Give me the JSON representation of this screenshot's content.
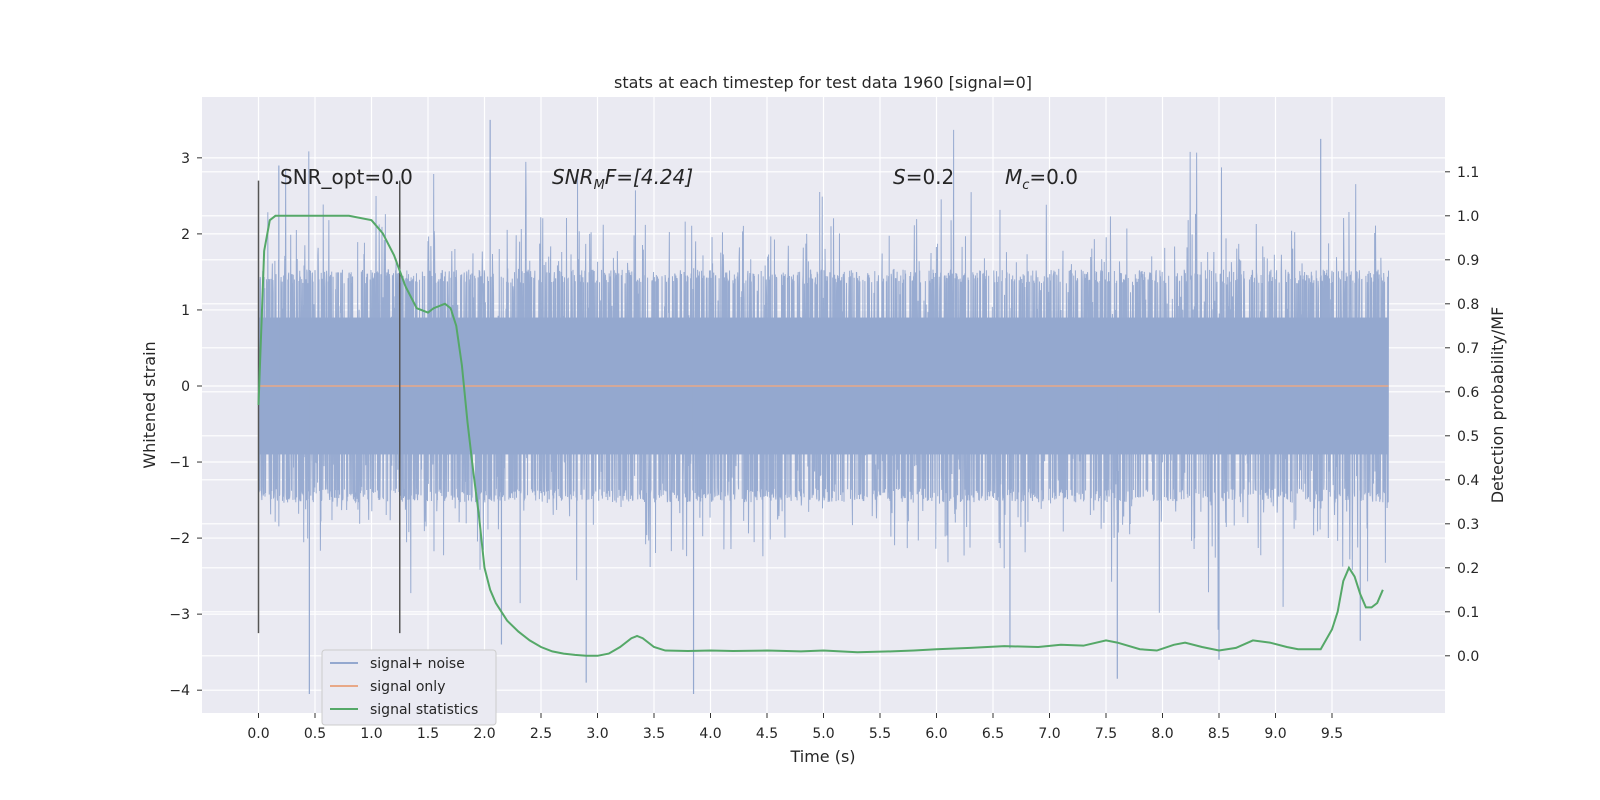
{
  "chart_data": {
    "type": "line",
    "title": "stats at each timestep for test data 1960 [signal=0]",
    "xlabel": "Time (s)",
    "ylabel": "Whitened strain",
    "y2label": "Detection probability/MF",
    "xlim": [
      -0.5,
      10.5
    ],
    "ylim": [
      -4.3,
      3.8
    ],
    "y2lim": [
      -0.13,
      1.27
    ],
    "xticks": [
      0.0,
      0.5,
      1.0,
      1.5,
      2.0,
      2.5,
      3.0,
      3.5,
      4.0,
      4.5,
      5.0,
      5.5,
      6.0,
      6.5,
      7.0,
      7.5,
      8.0,
      8.5,
      9.0,
      9.5
    ],
    "xtick_labels": [
      "0.0",
      "0.5",
      "1.0",
      "1.5",
      "2.0",
      "2.5",
      "3.0",
      "3.5",
      "4.0",
      "4.5",
      "5.0",
      "5.5",
      "6.0",
      "6.5",
      "7.0",
      "7.5",
      "8.0",
      "8.5",
      "9.0",
      "9.5"
    ],
    "yticks": [
      3,
      2,
      1,
      0,
      -1,
      -2,
      -3,
      -4
    ],
    "ytick_labels": [
      "3",
      "2",
      "1",
      "0",
      "−1",
      "−2",
      "−3",
      "−4"
    ],
    "y2ticks": [
      1.1,
      1.0,
      0.9,
      0.8,
      0.7,
      0.6,
      0.5,
      0.4,
      0.3,
      0.2,
      0.1,
      0.0
    ],
    "y2tick_labels": [
      "1.1",
      "1.0",
      "0.9",
      "0.8",
      "0.7",
      "0.6",
      "0.5",
      "0.4",
      "0.3",
      "0.2",
      "0.1",
      "0.0"
    ],
    "grid": true,
    "legend_position": "lower-left",
    "vlines": [
      0.0,
      1.25
    ],
    "annotations": {
      "snr_opt": "SNR_opt=0.0",
      "snr_mf_main": "SNR",
      "snr_mf_sub": "M",
      "snr_mf_rest": "F=[4.24]",
      "s_main": "S",
      "s_rest": "=0.2",
      "mc_main": "M",
      "mc_sub": "c",
      "mc_rest": "=0.0"
    },
    "series": [
      {
        "name": "signal+ noise",
        "color": "#94a8cf",
        "kind": "noise",
        "x_range": [
          0.0,
          10.0
        ],
        "envelope_bulk": [
          -1.5,
          1.5
        ],
        "extremes": [
          -4.05,
          3.5
        ]
      },
      {
        "name": "signal only",
        "color": "#e8a887",
        "kind": "line",
        "x": [
          0.0,
          10.0
        ],
        "y": [
          0.0,
          0.0
        ]
      },
      {
        "name": "signal statistics",
        "color": "#55a868",
        "kind": "line",
        "axis": "right",
        "x": [
          0.0,
          0.05,
          0.1,
          0.15,
          0.25,
          0.4,
          0.6,
          0.8,
          1.0,
          1.1,
          1.2,
          1.3,
          1.4,
          1.5,
          1.55,
          1.65,
          1.7,
          1.75,
          1.8,
          1.85,
          1.9,
          1.95,
          2.0,
          2.05,
          2.1,
          2.2,
          2.3,
          2.4,
          2.5,
          2.6,
          2.7,
          2.8,
          2.9,
          3.0,
          3.1,
          3.2,
          3.3,
          3.35,
          3.4,
          3.5,
          3.6,
          3.8,
          4.0,
          4.2,
          4.5,
          4.8,
          5.0,
          5.3,
          5.6,
          5.8,
          6.0,
          6.3,
          6.6,
          6.9,
          7.1,
          7.3,
          7.5,
          7.6,
          7.8,
          7.95,
          8.1,
          8.2,
          8.35,
          8.5,
          8.65,
          8.8,
          8.95,
          9.1,
          9.2,
          9.3,
          9.4,
          9.5,
          9.55,
          9.6,
          9.65,
          9.7,
          9.75,
          9.8,
          9.85,
          9.9,
          9.95
        ],
        "y": [
          0.57,
          0.92,
          0.99,
          1.0,
          1.0,
          1.0,
          1.0,
          1.0,
          0.99,
          0.96,
          0.91,
          0.84,
          0.79,
          0.78,
          0.79,
          0.8,
          0.79,
          0.75,
          0.66,
          0.53,
          0.42,
          0.32,
          0.2,
          0.15,
          0.12,
          0.08,
          0.055,
          0.035,
          0.02,
          0.01,
          0.005,
          0.002,
          0.0,
          0.0,
          0.005,
          0.02,
          0.04,
          0.045,
          0.04,
          0.02,
          0.012,
          0.011,
          0.012,
          0.011,
          0.012,
          0.01,
          0.012,
          0.008,
          0.01,
          0.012,
          0.015,
          0.018,
          0.022,
          0.02,
          0.025,
          0.023,
          0.035,
          0.03,
          0.015,
          0.012,
          0.025,
          0.03,
          0.02,
          0.012,
          0.018,
          0.035,
          0.03,
          0.02,
          0.015,
          0.015,
          0.015,
          0.06,
          0.1,
          0.17,
          0.2,
          0.18,
          0.14,
          0.11,
          0.11,
          0.12,
          0.15
        ]
      }
    ]
  }
}
